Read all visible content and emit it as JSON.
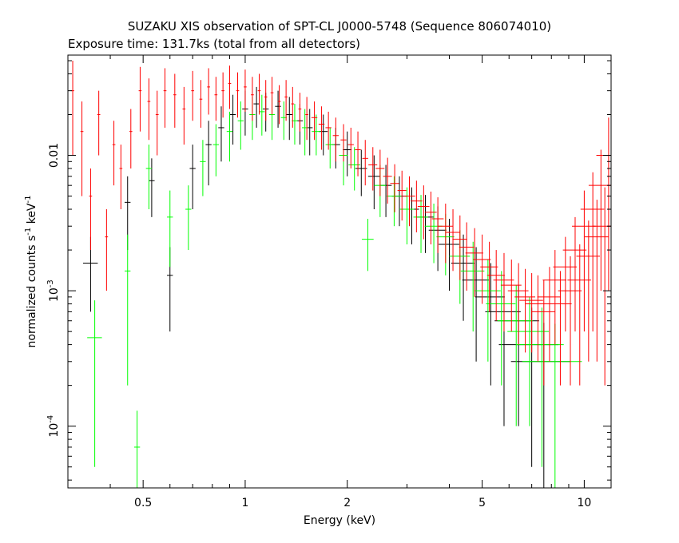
{
  "chart_data": {
    "type": "scatter",
    "title": "SUZAKU XIS observation of SPT-CL J0000-5748 (Sequence 806074010)",
    "subtitle": "Exposure time: 131.7ks (total from all detectors)",
    "xlabel": "Energy (keV)",
    "ylabel": {
      "parts": [
        "normalized counts s",
        "-1",
        " keV",
        "-1"
      ]
    },
    "xscale": "log",
    "yscale": "log",
    "xlim": [
      0.3,
      12
    ],
    "ylim": [
      3.5e-05,
      0.055
    ],
    "x_ticks": [
      {
        "value": 0.5,
        "label": "0.5"
      },
      {
        "value": 1,
        "label": "1"
      },
      {
        "value": 2,
        "label": "2"
      },
      {
        "value": 5,
        "label": "5"
      },
      {
        "value": 10,
        "label": "10"
      }
    ],
    "y_ticks": [
      {
        "value": 0.0001,
        "base": "10",
        "exp": "-4"
      },
      {
        "value": 0.001,
        "base": "10",
        "exp": "-3"
      },
      {
        "value": 0.01,
        "label": "0.01"
      }
    ],
    "grid": false,
    "legend": "none",
    "series": [
      {
        "color": "#000000",
        "points": [
          [
            0.35,
            0.0016,
            0.05,
            0.0009
          ],
          [
            0.45,
            0.0045,
            0.02,
            0.0025
          ],
          [
            0.53,
            0.0065,
            0.02,
            0.003
          ],
          [
            0.6,
            0.0013,
            0.02,
            0.0008
          ],
          [
            0.7,
            0.008,
            0.02,
            0.004
          ],
          [
            0.78,
            0.012,
            0.02,
            0.006
          ],
          [
            0.85,
            0.016,
            0.02,
            0.007
          ],
          [
            0.92,
            0.02,
            0.02,
            0.008
          ],
          [
            1.0,
            0.022,
            0.02,
            0.008
          ],
          [
            1.08,
            0.024,
            0.02,
            0.008
          ],
          [
            1.15,
            0.022,
            0.02,
            0.007
          ],
          [
            1.25,
            0.023,
            0.02,
            0.007
          ],
          [
            1.35,
            0.02,
            0.02,
            0.007
          ],
          [
            1.45,
            0.018,
            0.02,
            0.006
          ],
          [
            1.55,
            0.016,
            0.02,
            0.006
          ],
          [
            1.7,
            0.015,
            0.03,
            0.005
          ],
          [
            1.85,
            0.012,
            0.03,
            0.004
          ],
          [
            2.0,
            0.011,
            0.03,
            0.004
          ],
          [
            2.2,
            0.008,
            0.04,
            0.003
          ],
          [
            2.4,
            0.007,
            0.04,
            0.003
          ],
          [
            2.6,
            0.006,
            0.04,
            0.0025
          ],
          [
            2.85,
            0.005,
            0.05,
            0.002
          ],
          [
            3.1,
            0.004,
            0.05,
            0.0018
          ],
          [
            3.4,
            0.0035,
            0.06,
            0.0016
          ],
          [
            3.7,
            0.0028,
            0.06,
            0.0014
          ],
          [
            4.0,
            0.0022,
            0.07,
            0.0012
          ],
          [
            4.4,
            0.0016,
            0.08,
            0.001
          ],
          [
            4.8,
            0.0012,
            0.09,
            0.0009
          ],
          [
            5.3,
            0.0009,
            0.1,
            0.0007
          ],
          [
            5.8,
            0.0007,
            0.12,
            0.0006
          ],
          [
            6.4,
            0.0006,
            0.15,
            0.0005
          ],
          [
            7.0,
            0.0004,
            0.2,
            0.00035
          ],
          [
            7.6,
            0.0003,
            0.2,
            0.00028
          ]
        ]
      },
      {
        "color": "#00ff00",
        "points": [
          [
            0.36,
            0.00045,
            0.05,
            0.0004
          ],
          [
            0.45,
            0.0014,
            0.02,
            0.0012
          ],
          [
            0.48,
            7e-05,
            0.02,
            6e-05
          ],
          [
            0.52,
            0.008,
            0.02,
            0.004
          ],
          [
            0.6,
            0.0035,
            0.02,
            0.002
          ],
          [
            0.68,
            0.004,
            0.02,
            0.002
          ],
          [
            0.75,
            0.009,
            0.02,
            0.004
          ],
          [
            0.82,
            0.012,
            0.02,
            0.005
          ],
          [
            0.9,
            0.015,
            0.02,
            0.006
          ],
          [
            0.97,
            0.018,
            0.02,
            0.007
          ],
          [
            1.05,
            0.02,
            0.02,
            0.007
          ],
          [
            1.12,
            0.021,
            0.02,
            0.007
          ],
          [
            1.2,
            0.02,
            0.02,
            0.007
          ],
          [
            1.3,
            0.019,
            0.02,
            0.006
          ],
          [
            1.4,
            0.018,
            0.02,
            0.006
          ],
          [
            1.5,
            0.016,
            0.02,
            0.006
          ],
          [
            1.62,
            0.015,
            0.03,
            0.005
          ],
          [
            1.78,
            0.012,
            0.03,
            0.004
          ],
          [
            1.95,
            0.01,
            0.03,
            0.004
          ],
          [
            2.1,
            0.0085,
            0.04,
            0.003
          ],
          [
            2.3,
            0.0024,
            0.04,
            0.001
          ],
          [
            2.5,
            0.006,
            0.04,
            0.0025
          ],
          [
            2.75,
            0.005,
            0.05,
            0.002
          ],
          [
            3.0,
            0.004,
            0.05,
            0.0018
          ],
          [
            3.3,
            0.0035,
            0.05,
            0.0016
          ],
          [
            3.6,
            0.003,
            0.06,
            0.0014
          ],
          [
            3.9,
            0.0025,
            0.06,
            0.0012
          ],
          [
            4.3,
            0.0018,
            0.07,
            0.001
          ],
          [
            4.7,
            0.0014,
            0.08,
            0.0009
          ],
          [
            5.2,
            0.001,
            0.09,
            0.0007
          ],
          [
            5.7,
            0.0008,
            0.1,
            0.0006
          ],
          [
            6.3,
            0.0006,
            0.12,
            0.0005
          ],
          [
            6.9,
            0.0005,
            0.14,
            0.0004
          ],
          [
            7.5,
            0.0004,
            0.16,
            0.00035
          ],
          [
            8.2,
            0.0003,
            0.2,
            0.00027
          ]
        ]
      },
      {
        "color": "#ff0000",
        "points": [
          [
            0.31,
            0.03,
            0.01,
            0.02
          ],
          [
            0.33,
            0.015,
            0.01,
            0.01
          ],
          [
            0.35,
            0.005,
            0.01,
            0.003
          ],
          [
            0.37,
            0.02,
            0.01,
            0.01
          ],
          [
            0.39,
            0.0025,
            0.01,
            0.0015
          ],
          [
            0.41,
            0.012,
            0.01,
            0.006
          ],
          [
            0.43,
            0.008,
            0.01,
            0.004
          ],
          [
            0.46,
            0.015,
            0.01,
            0.007
          ],
          [
            0.49,
            0.03,
            0.01,
            0.015
          ],
          [
            0.52,
            0.025,
            0.01,
            0.012
          ],
          [
            0.55,
            0.02,
            0.01,
            0.01
          ],
          [
            0.58,
            0.03,
            0.01,
            0.014
          ],
          [
            0.62,
            0.028,
            0.01,
            0.012
          ],
          [
            0.66,
            0.022,
            0.01,
            0.01
          ],
          [
            0.7,
            0.03,
            0.01,
            0.012
          ],
          [
            0.74,
            0.026,
            0.01,
            0.01
          ],
          [
            0.78,
            0.032,
            0.01,
            0.012
          ],
          [
            0.82,
            0.028,
            0.01,
            0.01
          ],
          [
            0.86,
            0.03,
            0.01,
            0.011
          ],
          [
            0.9,
            0.034,
            0.01,
            0.012
          ],
          [
            0.95,
            0.03,
            0.01,
            0.011
          ],
          [
            1.0,
            0.032,
            0.01,
            0.011
          ],
          [
            1.05,
            0.028,
            0.01,
            0.01
          ],
          [
            1.1,
            0.03,
            0.01,
            0.01
          ],
          [
            1.15,
            0.027,
            0.01,
            0.009
          ],
          [
            1.2,
            0.029,
            0.01,
            0.009
          ],
          [
            1.26,
            0.025,
            0.01,
            0.008
          ],
          [
            1.32,
            0.027,
            0.01,
            0.009
          ],
          [
            1.38,
            0.024,
            0.01,
            0.008
          ],
          [
            1.45,
            0.022,
            0.01,
            0.007
          ],
          [
            1.52,
            0.02,
            0.01,
            0.007
          ],
          [
            1.6,
            0.019,
            0.02,
            0.006
          ],
          [
            1.68,
            0.017,
            0.02,
            0.006
          ],
          [
            1.76,
            0.016,
            0.02,
            0.005
          ],
          [
            1.85,
            0.014,
            0.02,
            0.005
          ],
          [
            1.95,
            0.013,
            0.02,
            0.004
          ],
          [
            2.05,
            0.012,
            0.02,
            0.004
          ],
          [
            2.15,
            0.011,
            0.02,
            0.004
          ],
          [
            2.26,
            0.0095,
            0.02,
            0.0035
          ],
          [
            2.38,
            0.0085,
            0.03,
            0.003
          ],
          [
            2.5,
            0.008,
            0.03,
            0.003
          ],
          [
            2.63,
            0.007,
            0.03,
            0.0026
          ],
          [
            2.76,
            0.0062,
            0.03,
            0.0024
          ],
          [
            2.9,
            0.0055,
            0.03,
            0.0022
          ],
          [
            3.05,
            0.005,
            0.04,
            0.002
          ],
          [
            3.2,
            0.0046,
            0.04,
            0.0019
          ],
          [
            3.36,
            0.0042,
            0.04,
            0.0018
          ],
          [
            3.53,
            0.0038,
            0.04,
            0.0016
          ],
          [
            3.7,
            0.0034,
            0.04,
            0.0015
          ],
          [
            3.9,
            0.003,
            0.05,
            0.0014
          ],
          [
            4.1,
            0.0027,
            0.05,
            0.0013
          ],
          [
            4.3,
            0.0024,
            0.05,
            0.0012
          ],
          [
            4.5,
            0.0021,
            0.05,
            0.0011
          ],
          [
            4.75,
            0.0019,
            0.06,
            0.001
          ],
          [
            5.0,
            0.0017,
            0.06,
            0.0009
          ],
          [
            5.25,
            0.0015,
            0.06,
            0.0008
          ],
          [
            5.5,
            0.0013,
            0.06,
            0.0007
          ],
          [
            5.8,
            0.0012,
            0.07,
            0.0007
          ],
          [
            6.1,
            0.0011,
            0.07,
            0.0006
          ],
          [
            6.4,
            0.001,
            0.07,
            0.0006
          ],
          [
            6.7,
            0.0009,
            0.07,
            0.00055
          ],
          [
            7.0,
            0.00085,
            0.08,
            0.0005
          ],
          [
            7.3,
            0.0008,
            0.08,
            0.0005
          ],
          [
            7.6,
            0.0007,
            0.08,
            0.0005
          ],
          [
            7.9,
            0.0009,
            0.08,
            0.0006
          ],
          [
            8.2,
            0.0012,
            0.08,
            0.0008
          ],
          [
            8.5,
            0.0008,
            0.08,
            0.0006
          ],
          [
            8.8,
            0.0015,
            0.08,
            0.001
          ],
          [
            9.1,
            0.001,
            0.08,
            0.0008
          ],
          [
            9.4,
            0.002,
            0.08,
            0.0015
          ],
          [
            9.7,
            0.0012,
            0.08,
            0.001
          ],
          [
            10.0,
            0.003,
            0.08,
            0.0025
          ],
          [
            10.3,
            0.0018,
            0.08,
            0.0015
          ],
          [
            10.6,
            0.004,
            0.08,
            0.0035
          ],
          [
            10.9,
            0.0025,
            0.08,
            0.0022
          ],
          [
            11.2,
            0.006,
            0.08,
            0.005
          ],
          [
            11.5,
            0.003,
            0.08,
            0.0028
          ],
          [
            11.8,
            0.01,
            0.08,
            0.009
          ]
        ]
      }
    ]
  }
}
